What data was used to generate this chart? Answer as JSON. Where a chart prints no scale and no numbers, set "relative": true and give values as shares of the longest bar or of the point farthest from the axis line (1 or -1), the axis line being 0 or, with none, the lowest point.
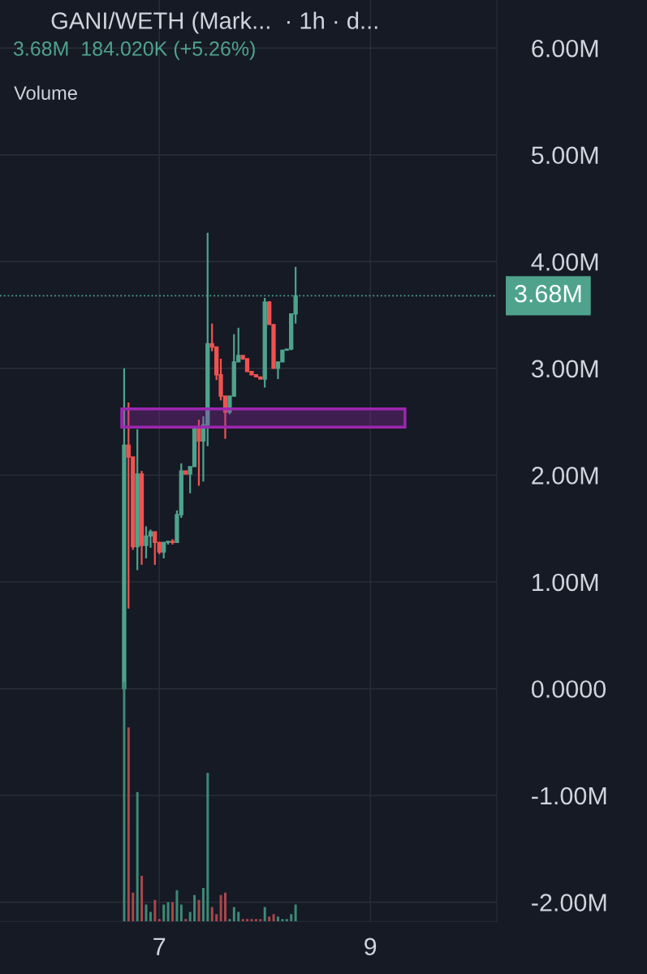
{
  "chart_data": [
    {
      "type": "candlestick",
      "title": "GANI/WETH (Mark...  · 1h · d...",
      "subtitle": "3.68M  184.020K (+5.26%)",
      "x": [
        6.667,
        6.708,
        6.75,
        6.792,
        6.833,
        6.875,
        6.917,
        6.958,
        7.0,
        7.042,
        7.083,
        7.125,
        7.167,
        7.208,
        7.25,
        7.292,
        7.333,
        7.375,
        7.417,
        7.458,
        7.5,
        7.542,
        7.583,
        7.625,
        7.667,
        7.708,
        7.75,
        7.792,
        7.833,
        7.875,
        7.917,
        7.958,
        8.0,
        8.042,
        8.083,
        8.125,
        8.167,
        8.208,
        8.25,
        8.292
      ],
      "ohlc": [
        [
          0,
          3.0,
          0,
          2.28
        ],
        [
          2.28,
          2.68,
          0.75,
          2.17
        ],
        [
          2.17,
          2.17,
          1.3,
          1.33
        ],
        [
          1.33,
          2.43,
          1.11,
          2.01
        ],
        [
          2.01,
          2.04,
          1.16,
          1.34
        ],
        [
          1.34,
          1.52,
          1.22,
          1.43
        ],
        [
          1.43,
          1.49,
          1.32,
          1.47
        ],
        [
          1.47,
          1.47,
          1.16,
          1.37
        ],
        [
          1.37,
          1.37,
          1.26,
          1.28
        ],
        [
          1.28,
          1.37,
          1.22,
          1.37
        ],
        [
          1.37,
          1.38,
          1.35,
          1.38
        ],
        [
          1.38,
          1.4,
          1.35,
          1.37
        ],
        [
          1.37,
          1.67,
          1.37,
          1.63
        ],
        [
          1.63,
          2.11,
          1.6,
          2.04
        ],
        [
          2.04,
          2.04,
          2.01,
          2.01
        ],
        [
          2.01,
          2.08,
          1.83,
          2.08
        ],
        [
          2.08,
          2.43,
          2.08,
          2.43
        ],
        [
          2.43,
          2.52,
          1.9,
          2.32
        ],
        [
          2.32,
          2.55,
          1.94,
          2.47
        ],
        [
          2.47,
          4.27,
          2.27,
          3.23
        ],
        [
          3.23,
          3.42,
          3.16,
          3.2
        ],
        [
          3.2,
          3.2,
          2.89,
          2.94
        ],
        [
          2.94,
          3.09,
          2.7,
          2.74
        ],
        [
          2.74,
          2.74,
          2.34,
          2.59
        ],
        [
          2.59,
          2.74,
          2.57,
          2.74
        ],
        [
          2.74,
          3.32,
          2.74,
          3.06
        ],
        [
          3.06,
          3.38,
          3.06,
          3.12
        ],
        [
          3.12,
          3.12,
          3.08,
          3.09
        ],
        [
          3.09,
          3.09,
          2.97,
          2.97
        ],
        [
          2.97,
          2.97,
          2.94,
          2.94
        ],
        [
          2.94,
          2.94,
          2.92,
          2.92
        ],
        [
          2.92,
          2.92,
          2.9,
          2.9
        ],
        [
          2.9,
          3.66,
          2.82,
          3.62
        ],
        [
          3.62,
          3.63,
          3.41,
          3.41
        ],
        [
          3.41,
          3.41,
          3.0,
          3.0
        ],
        [
          3.0,
          3.06,
          2.9,
          3.06
        ],
        [
          3.06,
          3.17,
          3.06,
          3.17
        ],
        [
          3.17,
          3.18,
          3.17,
          3.18
        ],
        [
          3.18,
          3.51,
          3.17,
          3.51
        ],
        [
          3.51,
          3.95,
          3.42,
          3.68
        ]
      ],
      "colors": [
        "#4fa38d",
        "#ef5350",
        "#ef5350",
        "#4fa38d",
        "#ef5350",
        "#4fa38d",
        "#4fa38d",
        "#ef5350",
        "#ef5350",
        "#4fa38d",
        "#4fa38d",
        "#ef5350",
        "#4fa38d",
        "#4fa38d",
        "#ef5350",
        "#4fa38d",
        "#4fa38d",
        "#ef5350",
        "#4fa38d",
        "#4fa38d",
        "#ef5350",
        "#ef5350",
        "#ef5350",
        "#ef5350",
        "#4fa38d",
        "#4fa38d",
        "#4fa38d",
        "#ef5350",
        "#ef5350",
        "#ef5350",
        "#ef5350",
        "#ef5350",
        "#4fa38d",
        "#ef5350",
        "#ef5350",
        "#4fa38d",
        "#4fa38d",
        "#4fa38d",
        "#4fa38d",
        "#4fa38d"
      ],
      "xlim": [
        5.49,
        10.2
      ],
      "xticks": [
        7,
        9
      ],
      "ylim": [
        -2.18,
        6.45
      ],
      "yticks": [
        {
          "value": -2,
          "label": "-2.00M"
        },
        {
          "value": -1,
          "label": "-1.00M"
        },
        {
          "value": 0,
          "label": "0.0000"
        },
        {
          "value": 1,
          "label": "1.00M"
        },
        {
          "value": 2,
          "label": "2.00M"
        },
        {
          "value": 3,
          "label": "3.00M"
        },
        {
          "value": 4,
          "label": "4.00M"
        },
        {
          "value": 5,
          "label": "5.00M"
        },
        {
          "value": 6,
          "label": "6.00M"
        }
      ],
      "grid": true,
      "ref_lines": [
        {
          "axis": "y",
          "value": 3.68,
          "label": "3.68M",
          "color": "#4fa38d",
          "line_style": "dotted"
        }
      ],
      "annotations": [
        "Volume"
      ],
      "bands": [
        {
          "axis": "y",
          "from": 2.45,
          "to": 2.62,
          "color": "#9c27b0"
        }
      ]
    },
    {
      "type": "bar",
      "relative": true,
      "categories": [
        null,
        null,
        null,
        null,
        null,
        null,
        null,
        null,
        null,
        null,
        null,
        null,
        null,
        null,
        null,
        null,
        null,
        null,
        null,
        null,
        null,
        null,
        null,
        null,
        null,
        null,
        null,
        null,
        null,
        null,
        null,
        null,
        null,
        null,
        null,
        null,
        null,
        null,
        null,
        null
      ],
      "values": [
        1.0,
        0.81,
        0.12,
        0.54,
        0.19,
        0.07,
        0.04,
        0.09,
        0.01,
        0.07,
        0.08,
        0.08,
        0.13,
        0.07,
        0.01,
        0.04,
        0.11,
        0.09,
        0.14,
        0.62,
        0.06,
        0.03,
        0.11,
        0.12,
        0.01,
        0.06,
        0.04,
        0.01,
        0.01,
        0.01,
        0.01,
        0.01,
        0.06,
        0.02,
        0.03,
        0.02,
        0.01,
        0.01,
        0.03,
        0.07
      ],
      "colors": [
        "#3d8a76",
        "#a9474a",
        "#a9474a",
        "#3d8a76",
        "#a9474a",
        "#3d8a76",
        "#3d8a76",
        "#a9474a",
        "#a9474a",
        "#3d8a76",
        "#3d8a76",
        "#a9474a",
        "#3d8a76",
        "#3d8a76",
        "#a9474a",
        "#3d8a76",
        "#3d8a76",
        "#a9474a",
        "#3d8a76",
        "#3d8a76",
        "#a9474a",
        "#a9474a",
        "#a9474a",
        "#a9474a",
        "#3d8a76",
        "#3d8a76",
        "#3d8a76",
        "#a9474a",
        "#a9474a",
        "#a9474a",
        "#a9474a",
        "#a9474a",
        "#3d8a76",
        "#a9474a",
        "#a9474a",
        "#3d8a76",
        "#3d8a76",
        "#3d8a76",
        "#3d8a76",
        "#3d8a76"
      ]
    }
  ]
}
